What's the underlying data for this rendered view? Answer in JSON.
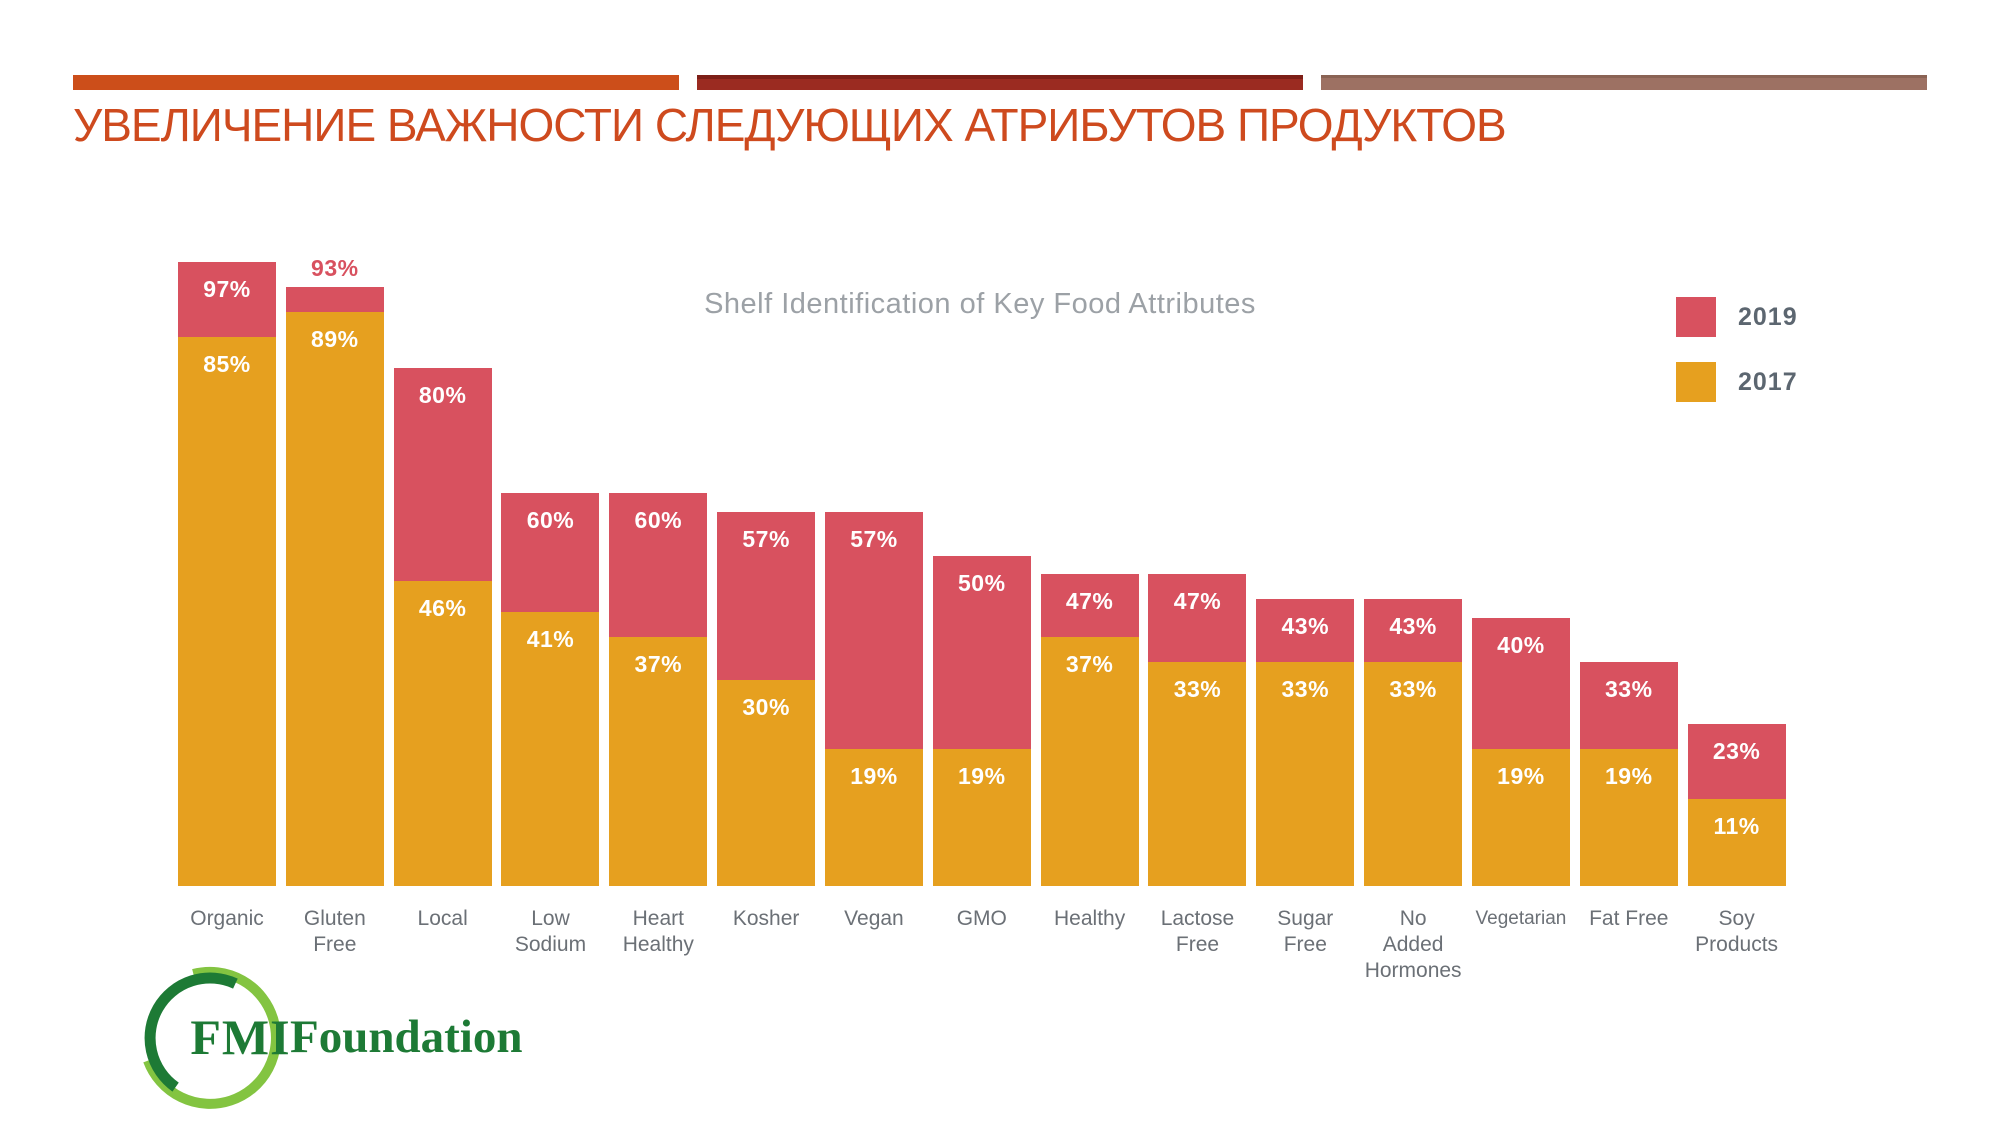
{
  "slide": {
    "title": "УВЕЛИЧЕНИЕ ВАЖНОСТИ СЛЕДУЮЩИХ АТРИБУТОВ ПРОДУКТОВ"
  },
  "theme": {
    "rule_colors": [
      "#cc4e1a",
      "#9b2b21",
      "#9d7163"
    ],
    "title_color": "#ce4a1e",
    "red_2019": "#d8515f",
    "orange_2017": "#e6a01f",
    "label_gray": "#6b7076"
  },
  "chart_data": {
    "type": "bar",
    "title": "Shelf Identification of Key Food Attributes",
    "unit": "%",
    "legend_position": "top-right",
    "axis_hidden": true,
    "bar_style": "overlaid (2017 bar drawn over 2019 bar, labels inside in white)",
    "categories": [
      "Organic",
      "Gluten Free",
      "Local",
      "Low Sodium",
      "Heart Healthy",
      "Kosher",
      "Vegan",
      "GMO",
      "Healthy",
      "Lactose Free",
      "Sugar Free",
      "No Added Hormones",
      "Vegetarian",
      "Fat Free",
      "Soy Products"
    ],
    "category_lines": [
      [
        "Organic"
      ],
      [
        "Gluten",
        "Free"
      ],
      [
        "Local"
      ],
      [
        "Low",
        "Sodium"
      ],
      [
        "Heart",
        "Healthy"
      ],
      [
        "Kosher"
      ],
      [
        "Vegan"
      ],
      [
        "GMO"
      ],
      [
        "Healthy"
      ],
      [
        "Lactose",
        "Free"
      ],
      [
        "Sugar",
        "Free"
      ],
      [
        "No",
        "Added",
        "Hormones"
      ],
      [
        "Vegetarian"
      ],
      [
        "Fat Free"
      ],
      [
        "Soy",
        "Products"
      ]
    ],
    "small_font_categories": [
      "Vegetarian"
    ],
    "outside_label_2019": [
      "Gluten Free"
    ],
    "series": [
      {
        "name": "2019",
        "color": "#d8515f",
        "values": [
          97,
          93,
          80,
          60,
          60,
          57,
          57,
          50,
          47,
          47,
          43,
          43,
          40,
          33,
          23
        ]
      },
      {
        "name": "2017",
        "color": "#e6a01f",
        "values": [
          85,
          89,
          46,
          41,
          37,
          30,
          19,
          19,
          37,
          33,
          33,
          33,
          19,
          19,
          11
        ]
      }
    ],
    "ylim": [
      0,
      100
    ]
  },
  "legend": [
    {
      "label": "2019",
      "color": "#d8515f"
    },
    {
      "label": "2017",
      "color": "#e6a01f"
    }
  ],
  "logo": {
    "circle_text": "FMI",
    "wordmark": "Foundation",
    "dark_green": "#1d7a35",
    "light_green": "#83c441"
  }
}
